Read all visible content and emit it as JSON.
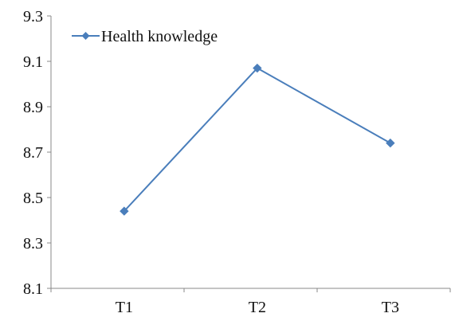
{
  "chart_data": {
    "type": "line",
    "categories": [
      "T1",
      "T2",
      "T3"
    ],
    "series": [
      {
        "name": "Health knowledge",
        "values": [
          8.44,
          9.07,
          8.74
        ]
      }
    ],
    "title": "",
    "xlabel": "",
    "ylabel": "",
    "ylim": [
      8.1,
      9.3
    ],
    "yticks": [
      "8.1",
      "8.3",
      "8.5",
      "8.7",
      "8.9",
      "9.1",
      "9.3"
    ],
    "grid": false,
    "legend": "top-left",
    "marker": "diamond",
    "colors": {
      "series": "#4a7ebb",
      "marker": "#4a7ebb",
      "axis": "#888888"
    }
  }
}
